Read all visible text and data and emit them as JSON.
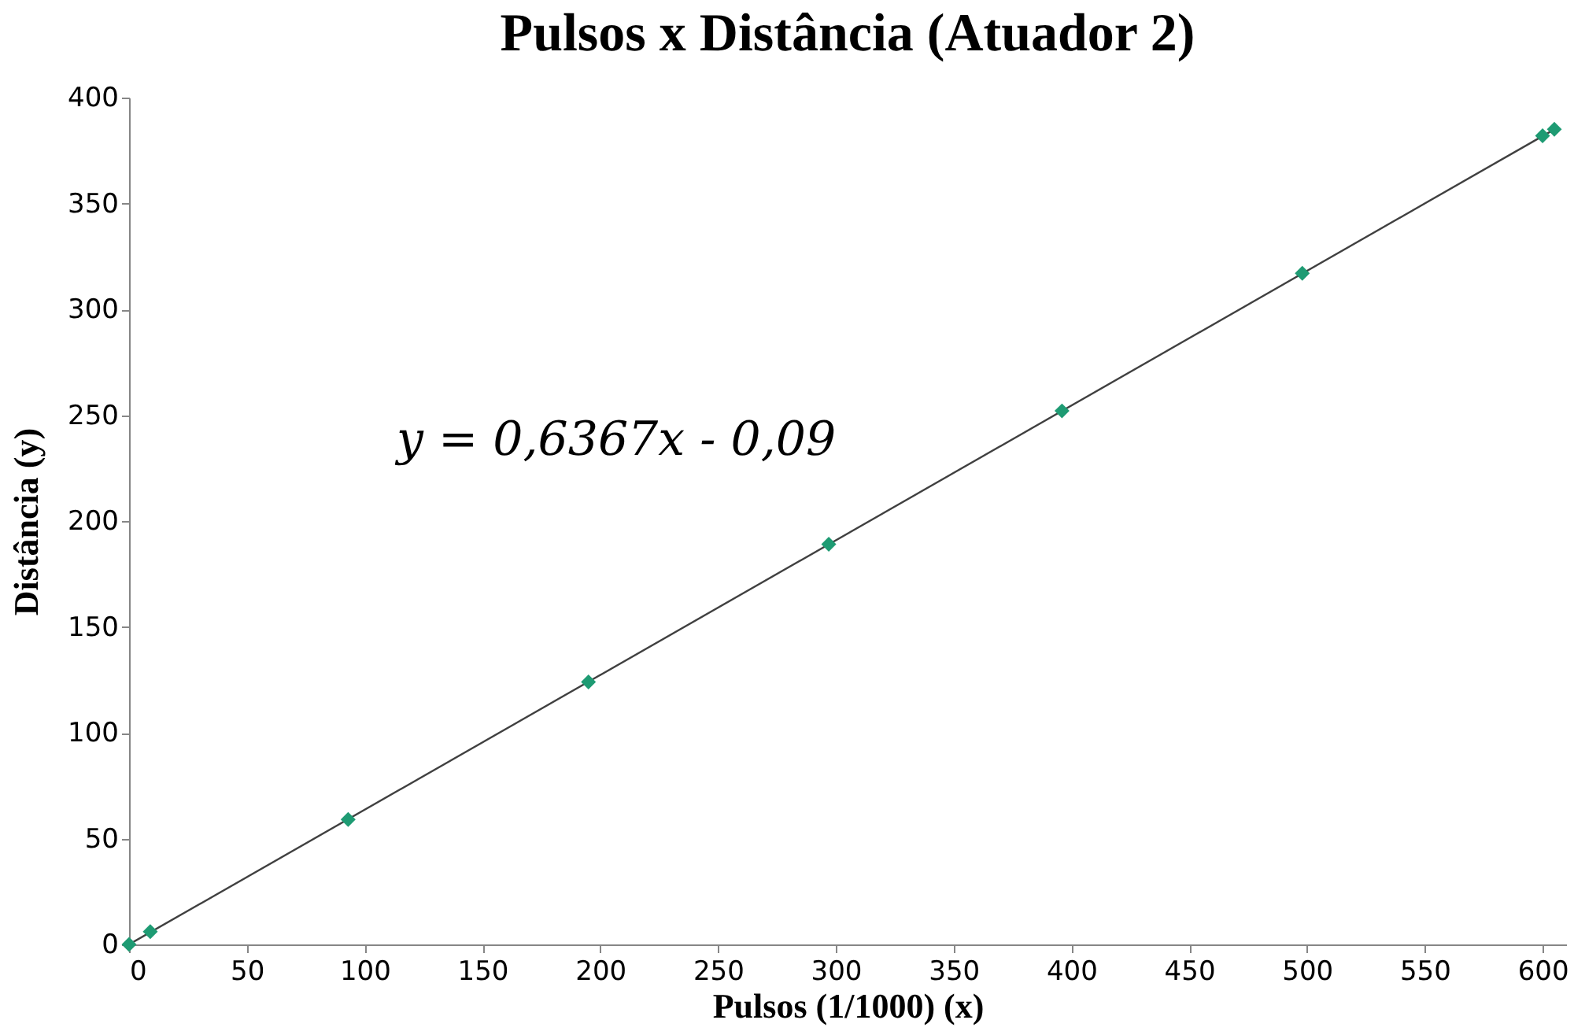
{
  "chart_data": {
    "type": "scatter",
    "title": "Pulsos x Distância (Atuador 2)",
    "xlabel": "Pulsos (1/1000) (x)",
    "ylabel": "Distância (y)",
    "series": [
      {
        "color": "#1e9b73",
        "x": [
          0,
          9,
          93,
          195,
          297,
          396,
          498,
          600,
          605
        ],
        "values": [
          0,
          6,
          59,
          124,
          189,
          252,
          317,
          382,
          385
        ],
        "marker": "diamond"
      },
      {
        "type": "line",
        "color": "#404040",
        "x": [
          0,
          605
        ],
        "values": [
          0,
          385
        ],
        "marker": "none"
      }
    ],
    "xlim": [
      0,
      610
    ],
    "ylim": [
      0,
      400
    ],
    "xticks": [
      0,
      50,
      100,
      150,
      200,
      250,
      300,
      350,
      400,
      450,
      500,
      550,
      600
    ],
    "yticks": [
      0,
      50,
      100,
      150,
      200,
      250,
      300,
      350,
      400
    ],
    "annotations": [
      "y = 0,6367x - 0,09"
    ],
    "grid": false
  }
}
